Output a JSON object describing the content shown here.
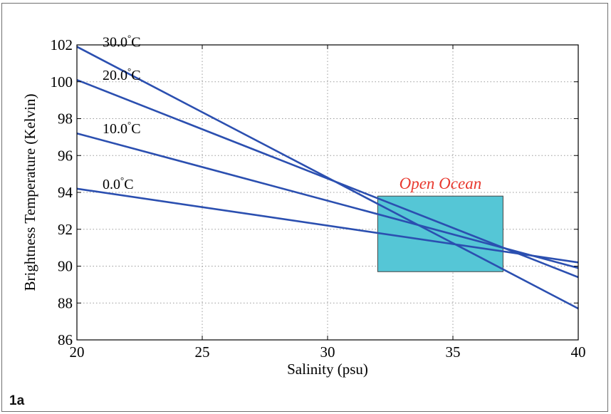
{
  "figure_label": "1a",
  "chart_data": {
    "type": "line",
    "xlabel": "Salinity (psu)",
    "ylabel": "Brightness Temperature (Kelvin)",
    "xlim": [
      20,
      40
    ],
    "ylim": [
      86,
      102
    ],
    "xticks": [
      20,
      25,
      30,
      35,
      40
    ],
    "yticks": [
      86,
      88,
      90,
      92,
      94,
      96,
      98,
      100,
      102
    ],
    "grid": true,
    "series": [
      {
        "name": "0.0",
        "x": [
          20,
          40
        ],
        "values": [
          94.2,
          90.2
        ],
        "color": "#2b4fb0"
      },
      {
        "name": "10.0",
        "x": [
          20,
          40
        ],
        "values": [
          97.2,
          89.9
        ],
        "color": "#2b4fb0"
      },
      {
        "name": "20.0",
        "x": [
          20,
          40
        ],
        "values": [
          100.1,
          89.4
        ],
        "color": "#2b4fb0"
      },
      {
        "name": "30.0",
        "x": [
          20,
          40
        ],
        "values": [
          101.9,
          87.7
        ],
        "color": "#2b4fb0"
      }
    ],
    "series_label_suffix": "°C",
    "region": {
      "label": "Open Ocean",
      "x": [
        32,
        37
      ],
      "y": [
        89.7,
        93.8
      ],
      "fill": "#55c6d6",
      "label_color": "#e8392f"
    }
  }
}
